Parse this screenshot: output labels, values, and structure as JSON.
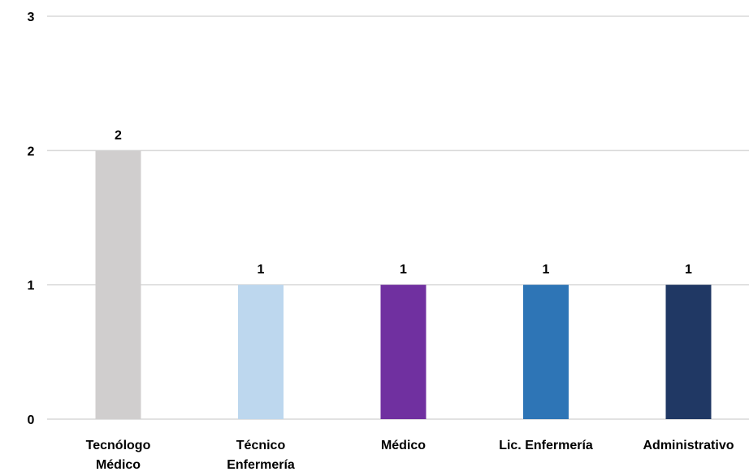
{
  "chart_data": {
    "type": "bar",
    "title": "",
    "xlabel": "",
    "ylabel": "",
    "categories": [
      [
        "Tecnólogo",
        "Médico"
      ],
      [
        "Técnico",
        "Enfermería"
      ],
      [
        "Médico"
      ],
      [
        "Lic. Enfermería"
      ],
      [
        "Administrativo"
      ]
    ],
    "values": [
      2,
      1,
      1,
      1,
      1
    ],
    "data_labels": [
      "2",
      "1",
      "1",
      "1",
      "1"
    ],
    "colors": [
      "#d0cece",
      "#bdd7ee",
      "#7030a0",
      "#2e75b6",
      "#203864"
    ],
    "ylim": [
      0,
      3
    ],
    "yticks": [
      "0",
      "1",
      "2",
      "3"
    ],
    "grid": true,
    "legend": "none"
  }
}
